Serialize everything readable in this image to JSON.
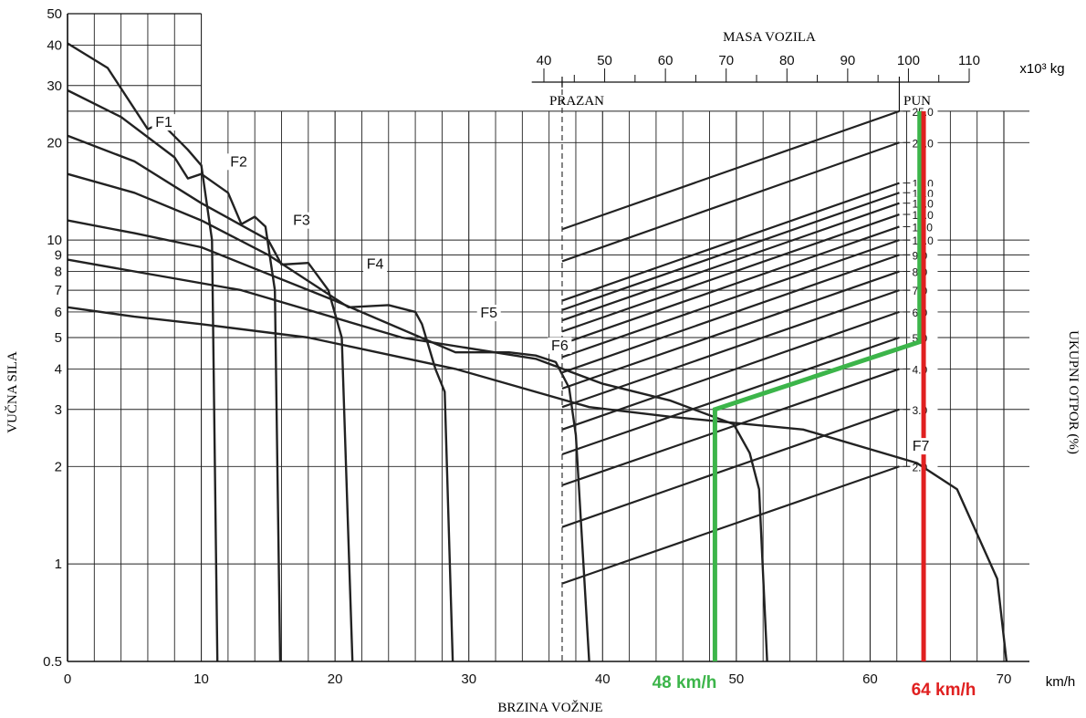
{
  "chart_data": {
    "type": "line",
    "x_axis": {
      "label": "BRZINA VOŽNJE",
      "unit": "km/h",
      "range": [
        0,
        70
      ],
      "ticks": [
        0,
        10,
        20,
        30,
        40,
        50,
        60,
        70
      ]
    },
    "y_axis_left": {
      "label": "VUČNA SILA",
      "scale": "log",
      "range": [
        0.5,
        50
      ],
      "ticks": [
        0.5,
        1,
        2,
        3,
        4,
        5,
        6,
        7,
        8,
        9,
        10,
        20,
        30,
        40,
        50
      ],
      "tick_labels": [
        "0.5",
        "1",
        "2",
        "3",
        "4",
        "5",
        "6",
        "7",
        "8",
        "9",
        "10",
        "20",
        "30",
        "40",
        "50"
      ]
    },
    "y_axis_right": {
      "label": "UKUPNI OTPOR (%)",
      "ticks": [
        2.0,
        3.0,
        4.0,
        5.0,
        6.0,
        7.0,
        8.0,
        9.0,
        10.0,
        11.0,
        12.0,
        13.0,
        14.0,
        15.0,
        20.0,
        25.0
      ],
      "tick_labels": [
        "2.0",
        "3.0",
        "4.0",
        "5.0",
        "6.0",
        "7.0",
        "8.0",
        "9.0",
        "10.0",
        "11.0",
        "12.0",
        "13.0",
        "14.0",
        "15.0",
        "20.0",
        "25.0"
      ]
    },
    "top_axis": {
      "label": "MASA VOZILA",
      "unit": "x10³ kg",
      "ticks": [
        40,
        50,
        60,
        70,
        80,
        90,
        100,
        110
      ],
      "empty_label": "PRAZAN",
      "full_label": "PUN",
      "empty_mass": 43,
      "full_mass": 98.5
    },
    "gear_series": [
      {
        "name": "F1",
        "points": [
          [
            0,
            40.5
          ],
          [
            3,
            34
          ],
          [
            6,
            22
          ],
          [
            7,
            23
          ],
          [
            9,
            19
          ],
          [
            10,
            17
          ],
          [
            10.8,
            10
          ],
          [
            11.2,
            0.5
          ]
        ]
      },
      {
        "name": "F2",
        "points": [
          [
            0,
            29
          ],
          [
            4,
            24
          ],
          [
            8,
            18
          ],
          [
            9,
            15.5
          ],
          [
            10,
            16
          ],
          [
            12,
            14
          ],
          [
            13,
            11.2
          ],
          [
            14,
            11.8
          ],
          [
            14.8,
            11
          ],
          [
            15.5,
            7
          ],
          [
            15.9,
            0.5
          ]
        ]
      },
      {
        "name": "F3",
        "points": [
          [
            0,
            21
          ],
          [
            5,
            17.5
          ],
          [
            10,
            13
          ],
          [
            15,
            10
          ],
          [
            16,
            8.4
          ],
          [
            18,
            8.5
          ],
          [
            19.5,
            7
          ],
          [
            20.5,
            5
          ],
          [
            21.3,
            0.5
          ]
        ]
      },
      {
        "name": "F4",
        "points": [
          [
            0,
            16
          ],
          [
            5,
            14
          ],
          [
            10,
            11.5
          ],
          [
            15,
            9
          ],
          [
            21,
            6.2
          ],
          [
            24,
            6.3
          ],
          [
            26,
            6
          ],
          [
            26.5,
            5.5
          ],
          [
            27.5,
            4
          ],
          [
            28.2,
            3.4
          ],
          [
            28.8,
            0.5
          ]
        ]
      },
      {
        "name": "F5",
        "points": [
          [
            0,
            11.5
          ],
          [
            5,
            10.5
          ],
          [
            10,
            9.5
          ],
          [
            20,
            6.5
          ],
          [
            29,
            4.5
          ],
          [
            33,
            4.5
          ],
          [
            35,
            4.4
          ],
          [
            36.5,
            4.2
          ],
          [
            37.5,
            3.5
          ],
          [
            38,
            2.5
          ],
          [
            39,
            0.5
          ]
        ]
      },
      {
        "name": "F6",
        "points": [
          [
            0,
            8.7
          ],
          [
            5,
            8
          ],
          [
            13,
            7
          ],
          [
            25,
            5
          ],
          [
            35,
            4.3
          ],
          [
            40,
            3.6
          ],
          [
            45,
            3.2
          ],
          [
            49.8,
            2.7
          ],
          [
            51,
            2.2
          ],
          [
            51.7,
            1.7
          ],
          [
            52.3,
            0.5
          ]
        ]
      },
      {
        "name": "F7",
        "points": [
          [
            0,
            6.2
          ],
          [
            5,
            5.8
          ],
          [
            10,
            5.5
          ],
          [
            18,
            5
          ],
          [
            29,
            4
          ],
          [
            39,
            3.05
          ],
          [
            45,
            2.85
          ],
          [
            55,
            2.6
          ],
          [
            63.5,
            2.05
          ],
          [
            66.5,
            1.7
          ],
          [
            69.5,
            0.9
          ],
          [
            70.2,
            0.5
          ]
        ]
      }
    ],
    "gear_label_positions": [
      [
        7.2,
        22.5
      ],
      [
        12.8,
        17
      ],
      [
        17.5,
        11.2
      ],
      [
        23,
        8.2
      ],
      [
        31.5,
        5.8
      ],
      [
        36.8,
        4.6
      ],
      [
        63.8,
        2.25
      ]
    ],
    "resistance_lines": [
      {
        "otpor": 25.0,
        "empty_y": 10.8
      },
      {
        "otpor": 20.0,
        "empty_y": 8.6
      },
      {
        "otpor": 15.0,
        "empty_y": 6.5
      },
      {
        "otpor": 14.0,
        "empty_y": 6.08
      },
      {
        "otpor": 13.0,
        "empty_y": 5.65
      },
      {
        "otpor": 12.0,
        "empty_y": 5.22
      },
      {
        "otpor": 11.0,
        "empty_y": 4.78
      },
      {
        "otpor": 10.0,
        "empty_y": 4.35
      },
      {
        "otpor": 9.0,
        "empty_y": 3.9
      },
      {
        "otpor": 8.0,
        "empty_y": 3.48
      },
      {
        "otpor": 7.0,
        "empty_y": 3.05
      },
      {
        "otpor": 6.0,
        "empty_y": 2.6
      },
      {
        "otpor": 5.0,
        "empty_y": 2.18
      },
      {
        "otpor": 4.0,
        "empty_y": 1.75
      },
      {
        "otpor": 3.0,
        "empty_y": 1.3
      },
      {
        "otpor": 2.0,
        "empty_y": 0.87
      }
    ],
    "green_path": {
      "color": "#3cb54a",
      "label": "48 km/h",
      "points": [
        [
          63.7,
          25
        ],
        [
          63.7,
          4.85
        ],
        [
          48.4,
          3.0
        ],
        [
          48.4,
          0.5
        ]
      ]
    },
    "red_path": {
      "color": "#e02020",
      "label": "64 km/h",
      "x": 64,
      "y_range": [
        0.5,
        25
      ]
    }
  }
}
